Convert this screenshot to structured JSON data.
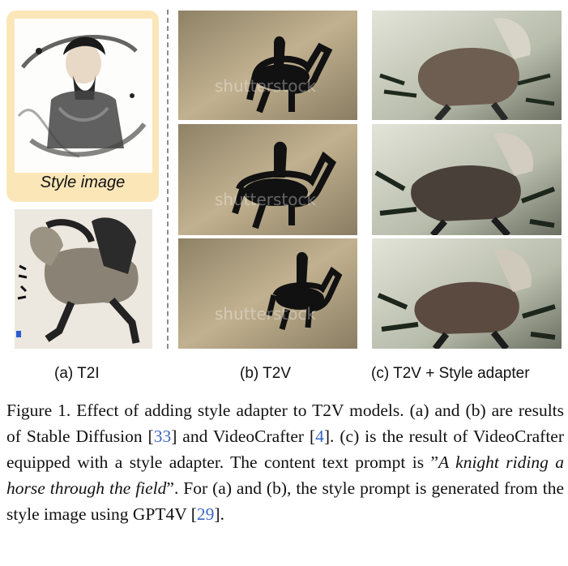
{
  "panels": {
    "style_image_caption": "Style image",
    "label_a": "(a) T2I",
    "label_b": "(b) T2V",
    "label_c": "(c) T2V + Style adapter",
    "watermark": "shutterstock"
  },
  "caption": {
    "figure_label": "Figure 1.",
    "text_1": " Effect of adding style adapter to T2V models. (a) and (b) are results of Stable Diffusion [",
    "ref_1": "33",
    "text_2": "] and VideoCrafter [",
    "ref_2": "4",
    "text_3": "]. (c) is the result of VideoCrafter equipped with a style adapter. The content text prompt is ”",
    "prompt": "A knight riding a horse through the field",
    "text_4": "”. For (a) and (b), the style prompt is generated from the style image using GPT4V [",
    "ref_3": "29",
    "text_5": "]."
  },
  "colors": {
    "style_box": "#fbe6b8",
    "reference_link": "#3a66c0",
    "t2v_background": "#b9a888",
    "adapter_background": "#cfd3c4"
  }
}
